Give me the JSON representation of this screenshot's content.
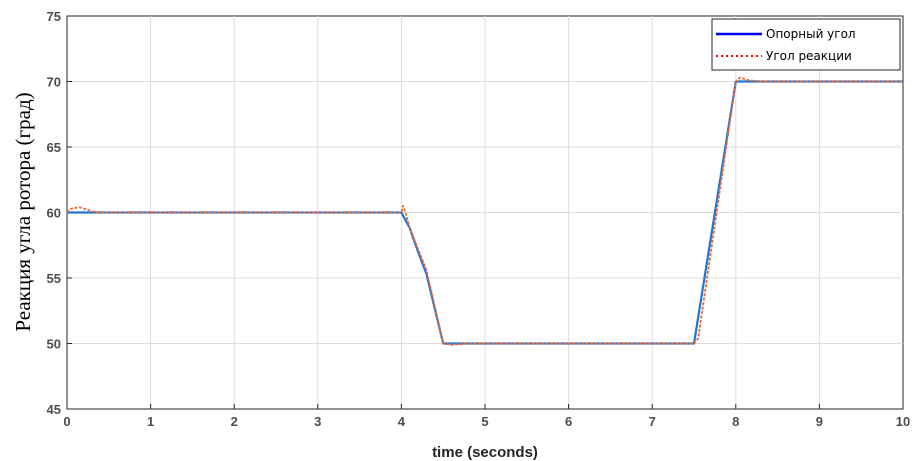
{
  "chart_data": {
    "type": "line",
    "xlabel": "time (seconds)",
    "ylabel": "Реакция угла ротора (град)",
    "xlim": [
      0,
      10
    ],
    "ylim": [
      45,
      75
    ],
    "xticks": [
      0,
      1,
      2,
      3,
      4,
      5,
      6,
      7,
      8,
      9,
      10
    ],
    "yticks": [
      45,
      50,
      55,
      60,
      65,
      70,
      75
    ],
    "grid": true,
    "legend_position": "top-right",
    "series": [
      {
        "name": "Опорный угол",
        "color": "#0000ff",
        "plot_color": "#1f77d4",
        "style": "solid",
        "x": [
          0,
          0.3,
          4.0,
          4.1,
          4.2,
          4.3,
          4.5,
          7.5,
          8.0,
          10
        ],
        "y": [
          60,
          60,
          60,
          58.8,
          57.0,
          55.3,
          50,
          50,
          70,
          70
        ]
      },
      {
        "name": "Угол реакции",
        "color": "#ff0000",
        "plot_color": "#e9683a",
        "style": "dotted",
        "x": [
          0,
          0.05,
          0.15,
          0.25,
          0.35,
          4.0,
          4.02,
          4.05,
          4.1,
          4.2,
          4.3,
          4.5,
          4.6,
          4.8,
          7.5,
          7.55,
          8.0,
          8.05,
          8.15,
          8.3,
          10
        ],
        "y": [
          60,
          60.3,
          60.4,
          60.2,
          60,
          60,
          60.5,
          60,
          58.8,
          57.2,
          55.6,
          50,
          49.9,
          50,
          50,
          50.4,
          70,
          70.3,
          70.1,
          70,
          70
        ]
      }
    ]
  }
}
